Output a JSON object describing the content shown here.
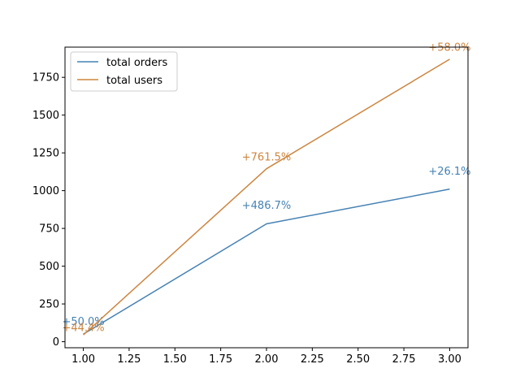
{
  "chart_data": {
    "type": "line",
    "title": "",
    "xlabel": "",
    "ylabel": "",
    "xlim": [
      0.9,
      3.1
    ],
    "ylim": [
      -40,
      1950
    ],
    "x_ticks": [
      1.0,
      1.25,
      1.5,
      1.75,
      2.0,
      2.25,
      2.5,
      2.75,
      3.0
    ],
    "x_tick_labels": [
      "1.00",
      "1.25",
      "1.50",
      "1.75",
      "2.00",
      "2.25",
      "2.50",
      "2.75",
      "3.00"
    ],
    "y_ticks": [
      0,
      250,
      500,
      750,
      1000,
      1250,
      1500,
      1750
    ],
    "y_tick_labels": [
      "0",
      "250",
      "500",
      "750",
      "1000",
      "1250",
      "1500",
      "1750"
    ],
    "grid": false,
    "legend_position": "top-left",
    "series": [
      {
        "name": "total orders",
        "color": "#4682b4",
        "x": [
          1,
          2,
          3
        ],
        "y": [
          50,
          780,
          1010
        ],
        "annotations": [
          {
            "x": 1,
            "y": 110,
            "text": "+50.0%"
          },
          {
            "x": 2,
            "y": 880,
            "text": "+486.7%"
          },
          {
            "x": 3,
            "y": 1105,
            "text": "+26.1%"
          }
        ]
      },
      {
        "name": "total users",
        "color": "#cd853f",
        "x": [
          1,
          2,
          3
        ],
        "y": [
          45,
          1145,
          1870
        ],
        "annotations": [
          {
            "x": 1,
            "y": 70,
            "text": "+44.4%"
          },
          {
            "x": 2,
            "y": 1200,
            "text": "+761.5%"
          },
          {
            "x": 3,
            "y": 1925,
            "text": "+58.0%"
          }
        ]
      }
    ]
  }
}
